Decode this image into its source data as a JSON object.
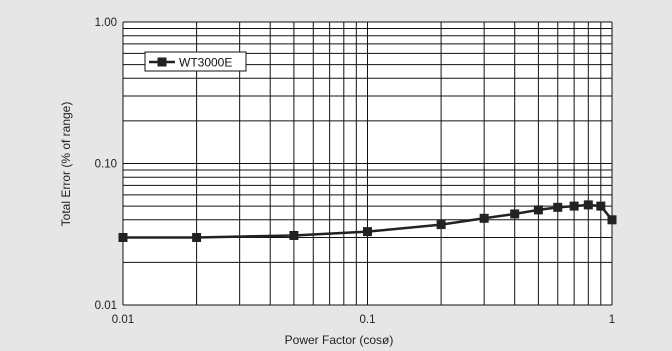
{
  "chart_data": {
    "type": "line",
    "title": "",
    "xlabel": "Power Factor (cosø)",
    "ylabel": "Total Error (% of range)",
    "x_scale": "log",
    "y_scale": "log",
    "xlim": [
      0.01,
      1
    ],
    "ylim": [
      0.01,
      1.0
    ],
    "x_tick_labels": [
      {
        "value": 0.01,
        "label": "0.01"
      },
      {
        "value": 0.1,
        "label": "0.1"
      },
      {
        "value": 1,
        "label": "1"
      }
    ],
    "y_tick_labels": [
      {
        "value": 0.01,
        "label": "0.01"
      },
      {
        "value": 0.1,
        "label": "0.10"
      },
      {
        "value": 1.0,
        "label": "1.00"
      }
    ],
    "grid": true,
    "legend": {
      "position": "top-left",
      "entries": [
        "WT3000E"
      ]
    },
    "series": [
      {
        "name": "WT3000E",
        "marker": "square",
        "color": "#222222",
        "x": [
          0.01,
          0.02,
          0.05,
          0.1,
          0.2,
          0.3,
          0.4,
          0.5,
          0.6,
          0.7,
          0.8,
          0.9,
          1.0
        ],
        "y": [
          0.03,
          0.03,
          0.031,
          0.033,
          0.037,
          0.041,
          0.044,
          0.047,
          0.049,
          0.05,
          0.051,
          0.05,
          0.04
        ]
      }
    ]
  },
  "colors": {
    "background": "#e6e6e6",
    "plot_background": "#ffffff",
    "grid": "#111111",
    "series": "#222222"
  }
}
